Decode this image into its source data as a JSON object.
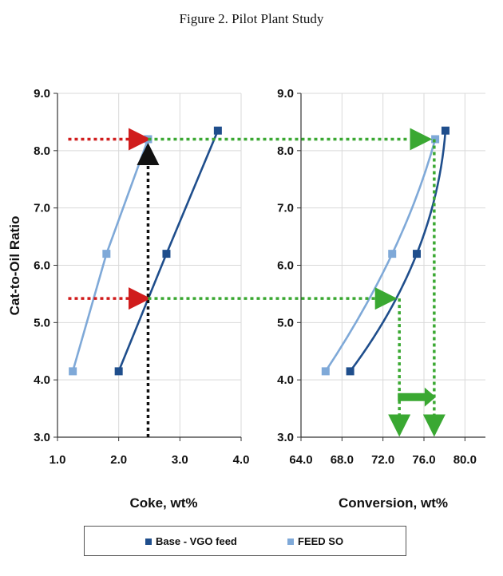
{
  "figure_title": "Figure 2. Pilot Plant Study",
  "shared_ylabel": "Cat-to-Oil Ratio",
  "legend": [
    {
      "label": "Base - VGO feed",
      "color": "#1f4e8c"
    },
    {
      "label": "FEED SO",
      "color": "#7fa9d8"
    }
  ],
  "chart_data": [
    {
      "type": "line",
      "panel": "left",
      "xlabel": "Coke, wt%",
      "ylabel": "Cat-to-Oil Ratio",
      "xlim": [
        1.0,
        4.0
      ],
      "ylim": [
        3.0,
        9.0
      ],
      "xticks": [
        "1.0",
        "2.0",
        "3.0",
        "4.0"
      ],
      "yticks": [
        "3.0",
        "4.0",
        "5.0",
        "6.0",
        "7.0",
        "8.0",
        "9.0"
      ],
      "grid": true,
      "series": [
        {
          "name": "Base - VGO feed",
          "color": "#1f4e8c",
          "x": [
            2.0,
            2.78,
            3.62
          ],
          "y": [
            4.15,
            6.2,
            8.35
          ]
        },
        {
          "name": "FEED SO",
          "color": "#7fa9d8",
          "x": [
            1.25,
            1.8,
            2.48
          ],
          "y": [
            4.15,
            6.2,
            8.2
          ]
        }
      ]
    },
    {
      "type": "line",
      "panel": "right",
      "xlabel": "Conversion, wt%",
      "ylabel": "",
      "xlim": [
        64.0,
        82.0
      ],
      "ylim": [
        3.0,
        9.0
      ],
      "xticks": [
        "64.0",
        "68.0",
        "72.0",
        "76.0",
        "80.0"
      ],
      "yticks": [
        "3.0",
        "4.0",
        "5.0",
        "6.0",
        "7.0",
        "8.0",
        "9.0"
      ],
      "grid": true,
      "series": [
        {
          "name": "Base - VGO feed",
          "color": "#1f4e8c",
          "x": [
            68.8,
            75.3,
            78.1
          ],
          "y": [
            4.15,
            6.2,
            8.35
          ]
        },
        {
          "name": "FEED SO",
          "color": "#7fa9d8",
          "x": [
            66.4,
            72.9,
            77.1
          ],
          "y": [
            4.15,
            6.2,
            8.2
          ]
        }
      ]
    }
  ]
}
